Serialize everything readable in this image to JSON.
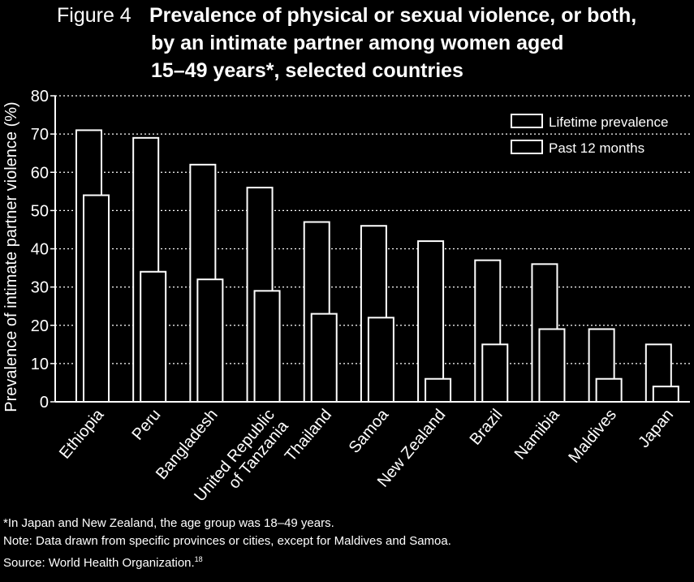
{
  "title": {
    "figure_label": "Figure 4",
    "lines": [
      "Prevalence of physical or sexual violence, or both,",
      "by an intimate partner among women aged",
      "15–49 years*, selected countries"
    ]
  },
  "footnotes": {
    "age_note": "*In Japan and New Zealand, the age group was 18–49 years.",
    "data_note": "Note: Data drawn from specific provinces or cities, except for Maldives and Samoa.",
    "source": "Source: World Health Organization.",
    "source_ref": "18"
  },
  "chart_data": {
    "type": "bar",
    "ylabel": "Prevalence of intimate partner violence (%)",
    "xlabel": "",
    "ylim": [
      0,
      80
    ],
    "yticks": [
      0,
      10,
      20,
      30,
      40,
      50,
      60,
      70,
      80
    ],
    "grid": "horizontal dotted",
    "legend_position": "top-right",
    "categories": [
      [
        "Ethiopia"
      ],
      [
        "Peru"
      ],
      [
        "Bangladesh"
      ],
      [
        "United Republic",
        "of Tanzania"
      ],
      [
        "Thailand"
      ],
      [
        "Samoa"
      ],
      [
        "New Zealand"
      ],
      [
        "Brazil"
      ],
      [
        "Namibia"
      ],
      [
        "Maldives"
      ],
      [
        "Japan"
      ]
    ],
    "series": [
      {
        "name": "Lifetime prevalence",
        "values": [
          71,
          69,
          62,
          56,
          47,
          46,
          42,
          37,
          36,
          19,
          15
        ]
      },
      {
        "name": "Past 12 months",
        "values": [
          54,
          34,
          32,
          29,
          23,
          22,
          6,
          15,
          19,
          6,
          4
        ]
      }
    ]
  }
}
